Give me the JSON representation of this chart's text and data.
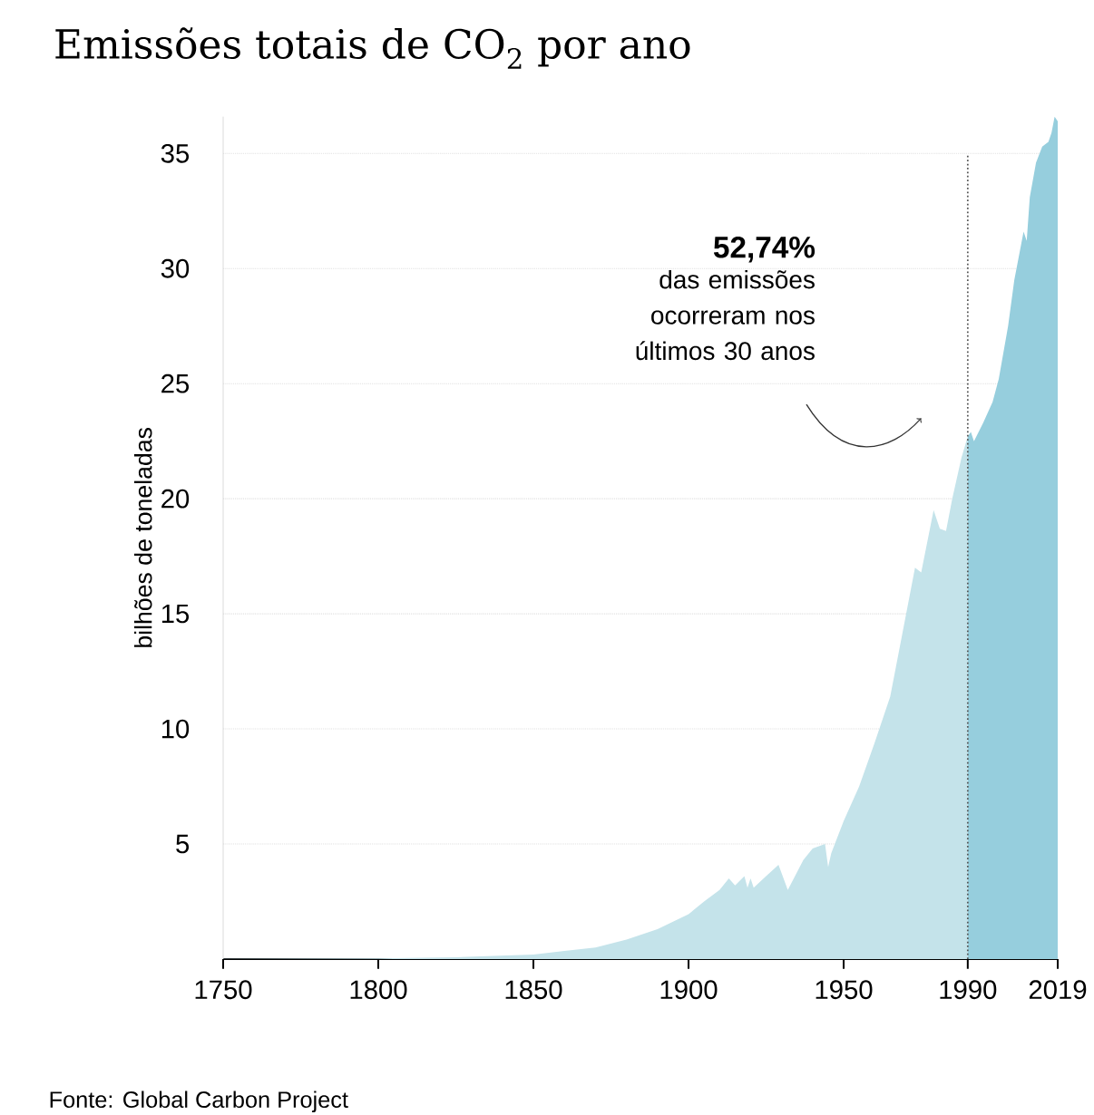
{
  "chart_data": {
    "type": "area",
    "title": "Emissões totais de CO$_{2}$ por ano",
    "ylabel": "bilhões de toneladas",
    "annotations": [
      "52,74%",
      "das emissões ocorreram nos últimos 30 anos",
      "Fonte: Global Carbon Project"
    ],
    "series": [
      {
        "color": "#c4e3ea",
        "x": [
          1750,
          1775,
          1800,
          1825,
          1850,
          1860,
          1870,
          1880,
          1890,
          1900,
          1905,
          1910,
          1913,
          1915,
          1918,
          1919,
          1920,
          1921,
          1925,
          1929,
          1932,
          1937,
          1940,
          1944,
          1945,
          1946,
          1950,
          1955,
          1960,
          1965,
          1970,
          1973,
          1975,
          1979,
          1981,
          1983,
          1985,
          1988,
          1990
        ],
        "values": [
          0.01,
          0.02,
          0.03,
          0.08,
          0.2,
          0.35,
          0.5,
          0.85,
          1.3,
          1.95,
          2.5,
          3.0,
          3.5,
          3.2,
          3.6,
          3.1,
          3.5,
          3.1,
          3.6,
          4.1,
          3.0,
          4.3,
          4.8,
          5.0,
          4.0,
          4.6,
          6.0,
          7.5,
          9.4,
          11.4,
          14.9,
          17.0,
          16.8,
          19.5,
          18.7,
          18.6,
          20.0,
          21.8,
          22.7
        ]
      },
      {
        "color": "#96cedd",
        "x": [
          1990,
          1991,
          1992,
          1995,
          1998,
          2000,
          2003,
          2005,
          2008,
          2009,
          2010,
          2012,
          2014,
          2016,
          2017,
          2018,
          2019
        ],
        "values": [
          22.7,
          22.9,
          22.5,
          23.3,
          24.2,
          25.2,
          27.5,
          29.5,
          31.6,
          31.2,
          33.1,
          34.6,
          35.3,
          35.5,
          35.9,
          36.6,
          36.4
        ]
      }
    ],
    "xlim": [
      1750,
      2019
    ],
    "ylim": [
      0,
      36.6
    ],
    "xticks": [
      1750,
      1800,
      1850,
      1900,
      1950,
      1990,
      2019
    ],
    "yticks": [
      5,
      10,
      15,
      20,
      25,
      30,
      35
    ],
    "grid": "y",
    "ref_lines": [
      {
        "axis": "x",
        "value": 1990,
        "color": "#555555",
        "line_style": "dotted"
      }
    ]
  }
}
